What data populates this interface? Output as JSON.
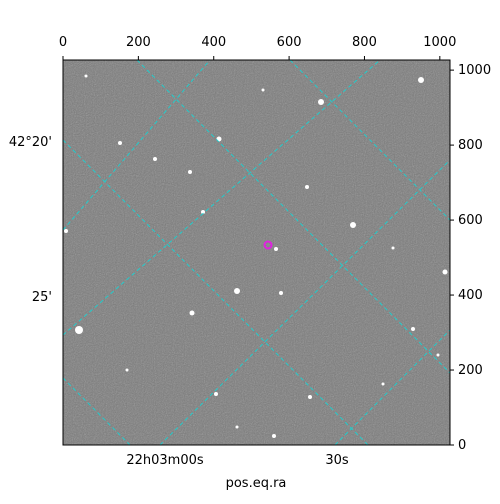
{
  "chart_data": {
    "type": "image",
    "xlabel": "pos.eq.ra",
    "xlim": [
      0,
      1027
    ],
    "ylim": [
      0,
      1027
    ],
    "xticks": [
      0,
      200,
      400,
      600,
      800,
      1000
    ],
    "yticks": [
      0,
      200,
      400,
      600,
      800,
      1000
    ],
    "dec_labels": [
      "42°20'",
      "25'"
    ],
    "ra_labels": [
      "22h03m00s",
      "30s"
    ]
  }
}
